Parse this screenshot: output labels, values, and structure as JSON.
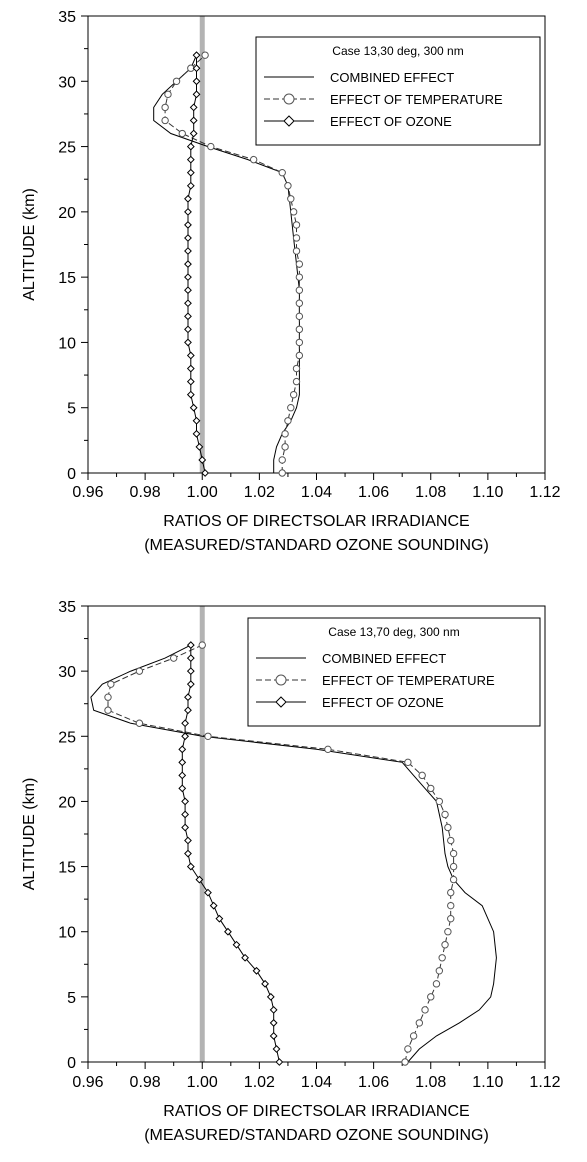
{
  "chart_data": [
    {
      "type": "line",
      "xlabel": "RATIOS OF DIRECTSOLAR IRRADIANCE",
      "xlabel2": "(MEASURED/STANDARD OZONE SOUNDING)",
      "ylabel": "ALTITUDE (km)",
      "xlim": [
        0.96,
        1.12
      ],
      "ylim": [
        0,
        35
      ],
      "xticks": [
        "0.96",
        "0.98",
        "1.00",
        "1.02",
        "1.04",
        "1.06",
        "1.08",
        "1.10",
        "1.12"
      ],
      "yticks": [
        "0",
        "5",
        "10",
        "15",
        "20",
        "25",
        "30",
        "35"
      ],
      "reference_line_x": 1.0,
      "legend_title": "Case 13,30 deg, 300 nm",
      "legend_position": "top-right",
      "series": [
        {
          "name": "COMBINED EFFECT",
          "style": "solid",
          "points": [
            [
              1.025,
              0
            ],
            [
              1.025,
              1
            ],
            [
              1.026,
              2
            ],
            [
              1.028,
              3
            ],
            [
              1.031,
              4
            ],
            [
              1.033,
              5
            ],
            [
              1.034,
              6
            ],
            [
              1.034,
              8
            ],
            [
              1.034,
              10
            ],
            [
              1.034,
              12
            ],
            [
              1.034,
              14
            ],
            [
              1.033,
              16
            ],
            [
              1.032,
              18
            ],
            [
              1.031,
              20
            ],
            [
              1.03,
              22
            ],
            [
              1.028,
              23
            ],
            [
              1.016,
              24
            ],
            [
              1.002,
              25
            ],
            [
              0.989,
              26
            ],
            [
              0.983,
              27
            ],
            [
              0.983,
              28
            ],
            [
              0.986,
              29
            ],
            [
              0.991,
              30
            ],
            [
              0.996,
              31
            ],
            [
              0.998,
              32
            ]
          ]
        },
        {
          "name": "EFFECT OF TEMPERATURE",
          "style": "dashed-circle",
          "points": [
            [
              1.028,
              0
            ],
            [
              1.028,
              1
            ],
            [
              1.029,
              2
            ],
            [
              1.029,
              3
            ],
            [
              1.03,
              4
            ],
            [
              1.031,
              5
            ],
            [
              1.032,
              6
            ],
            [
              1.033,
              7
            ],
            [
              1.033,
              8
            ],
            [
              1.034,
              9
            ],
            [
              1.034,
              10
            ],
            [
              1.034,
              11
            ],
            [
              1.034,
              12
            ],
            [
              1.034,
              13
            ],
            [
              1.034,
              14
            ],
            [
              1.034,
              15
            ],
            [
              1.034,
              16
            ],
            [
              1.033,
              17
            ],
            [
              1.033,
              18
            ],
            [
              1.033,
              19
            ],
            [
              1.032,
              20
            ],
            [
              1.031,
              21
            ],
            [
              1.03,
              22
            ],
            [
              1.028,
              23
            ],
            [
              1.018,
              24
            ],
            [
              1.003,
              25
            ],
            [
              0.993,
              26
            ],
            [
              0.987,
              27
            ],
            [
              0.987,
              28
            ],
            [
              0.988,
              29
            ],
            [
              0.991,
              30
            ],
            [
              0.996,
              31
            ],
            [
              1.001,
              32
            ]
          ]
        },
        {
          "name": "EFFECT OF OZONE",
          "style": "solid-diamond",
          "points": [
            [
              1.001,
              0
            ],
            [
              1.0,
              1
            ],
            [
              0.999,
              2
            ],
            [
              0.998,
              3
            ],
            [
              0.998,
              4
            ],
            [
              0.997,
              5
            ],
            [
              0.996,
              6
            ],
            [
              0.996,
              7
            ],
            [
              0.996,
              8
            ],
            [
              0.996,
              9
            ],
            [
              0.995,
              10
            ],
            [
              0.995,
              11
            ],
            [
              0.995,
              12
            ],
            [
              0.995,
              13
            ],
            [
              0.995,
              14
            ],
            [
              0.995,
              15
            ],
            [
              0.995,
              16
            ],
            [
              0.995,
              17
            ],
            [
              0.995,
              18
            ],
            [
              0.995,
              19
            ],
            [
              0.995,
              20
            ],
            [
              0.995,
              21
            ],
            [
              0.996,
              22
            ],
            [
              0.996,
              23
            ],
            [
              0.996,
              24
            ],
            [
              0.996,
              25
            ],
            [
              0.997,
              26
            ],
            [
              0.997,
              27
            ],
            [
              0.997,
              28
            ],
            [
              0.998,
              29
            ],
            [
              0.998,
              30
            ],
            [
              0.998,
              31
            ],
            [
              0.998,
              32
            ]
          ]
        }
      ]
    },
    {
      "type": "line",
      "xlabel": "RATIOS OF DIRECTSOLAR IRRADIANCE",
      "xlabel2": "(MEASURED/STANDARD OZONE SOUNDING)",
      "ylabel": "ALTITUDE (km)",
      "xlim": [
        0.96,
        1.12
      ],
      "ylim": [
        0,
        35
      ],
      "xticks": [
        "0.96",
        "0.98",
        "1.00",
        "1.02",
        "1.04",
        "1.06",
        "1.08",
        "1.10",
        "1.12"
      ],
      "yticks": [
        "0",
        "5",
        "10",
        "15",
        "20",
        "25",
        "30",
        "35"
      ],
      "reference_line_x": 1.0,
      "legend_title": "Case 13,70 deg, 300 nm",
      "legend_position": "top-right",
      "series": [
        {
          "name": "COMBINED EFFECT",
          "style": "solid",
          "points": [
            [
              1.072,
              0
            ],
            [
              1.076,
              1
            ],
            [
              1.082,
              2
            ],
            [
              1.09,
              3
            ],
            [
              1.097,
              4
            ],
            [
              1.101,
              5
            ],
            [
              1.102,
              6
            ],
            [
              1.103,
              8
            ],
            [
              1.102,
              10
            ],
            [
              1.098,
              12
            ],
            [
              1.092,
              13
            ],
            [
              1.088,
              14
            ],
            [
              1.086,
              15
            ],
            [
              1.085,
              16
            ],
            [
              1.084,
              18
            ],
            [
              1.082,
              20
            ],
            [
              1.078,
              21
            ],
            [
              1.074,
              22
            ],
            [
              1.07,
              23
            ],
            [
              1.04,
              24
            ],
            [
              1.0,
              25
            ],
            [
              0.975,
              26
            ],
            [
              0.962,
              27
            ],
            [
              0.961,
              28
            ],
            [
              0.965,
              29
            ],
            [
              0.975,
              30
            ],
            [
              0.987,
              31
            ],
            [
              0.996,
              32
            ]
          ]
        },
        {
          "name": "EFFECT OF TEMPERATURE",
          "style": "dashed-circle",
          "points": [
            [
              1.071,
              0
            ],
            [
              1.072,
              1
            ],
            [
              1.074,
              2
            ],
            [
              1.076,
              3
            ],
            [
              1.078,
              4
            ],
            [
              1.08,
              5
            ],
            [
              1.082,
              6
            ],
            [
              1.083,
              7
            ],
            [
              1.084,
              8
            ],
            [
              1.085,
              9
            ],
            [
              1.086,
              10
            ],
            [
              1.087,
              11
            ],
            [
              1.087,
              12
            ],
            [
              1.087,
              13
            ],
            [
              1.088,
              14
            ],
            [
              1.088,
              15
            ],
            [
              1.088,
              16
            ],
            [
              1.087,
              17
            ],
            [
              1.086,
              18
            ],
            [
              1.085,
              19
            ],
            [
              1.083,
              20
            ],
            [
              1.08,
              21
            ],
            [
              1.077,
              22
            ],
            [
              1.072,
              23
            ],
            [
              1.044,
              24
            ],
            [
              1.002,
              25
            ],
            [
              0.978,
              26
            ],
            [
              0.967,
              27
            ],
            [
              0.967,
              28
            ],
            [
              0.968,
              29
            ],
            [
              0.978,
              30
            ],
            [
              0.99,
              31
            ],
            [
              1.0,
              32
            ]
          ]
        },
        {
          "name": "EFFECT OF OZONE",
          "style": "solid-diamond",
          "points": [
            [
              1.027,
              0
            ],
            [
              1.026,
              1
            ],
            [
              1.025,
              2
            ],
            [
              1.025,
              3
            ],
            [
              1.025,
              4
            ],
            [
              1.024,
              5
            ],
            [
              1.022,
              6
            ],
            [
              1.019,
              7
            ],
            [
              1.015,
              8
            ],
            [
              1.012,
              9
            ],
            [
              1.009,
              10
            ],
            [
              1.006,
              11
            ],
            [
              1.004,
              12
            ],
            [
              1.002,
              13
            ],
            [
              0.999,
              14
            ],
            [
              0.996,
              15
            ],
            [
              0.995,
              16
            ],
            [
              0.995,
              17
            ],
            [
              0.994,
              18
            ],
            [
              0.994,
              19
            ],
            [
              0.994,
              20
            ],
            [
              0.993,
              21
            ],
            [
              0.993,
              22
            ],
            [
              0.993,
              23
            ],
            [
              0.993,
              24
            ],
            [
              0.994,
              25
            ],
            [
              0.994,
              26
            ],
            [
              0.995,
              27
            ],
            [
              0.995,
              28
            ],
            [
              0.996,
              29
            ],
            [
              0.996,
              30
            ],
            [
              0.996,
              31
            ],
            [
              0.996,
              32
            ]
          ]
        }
      ]
    }
  ]
}
